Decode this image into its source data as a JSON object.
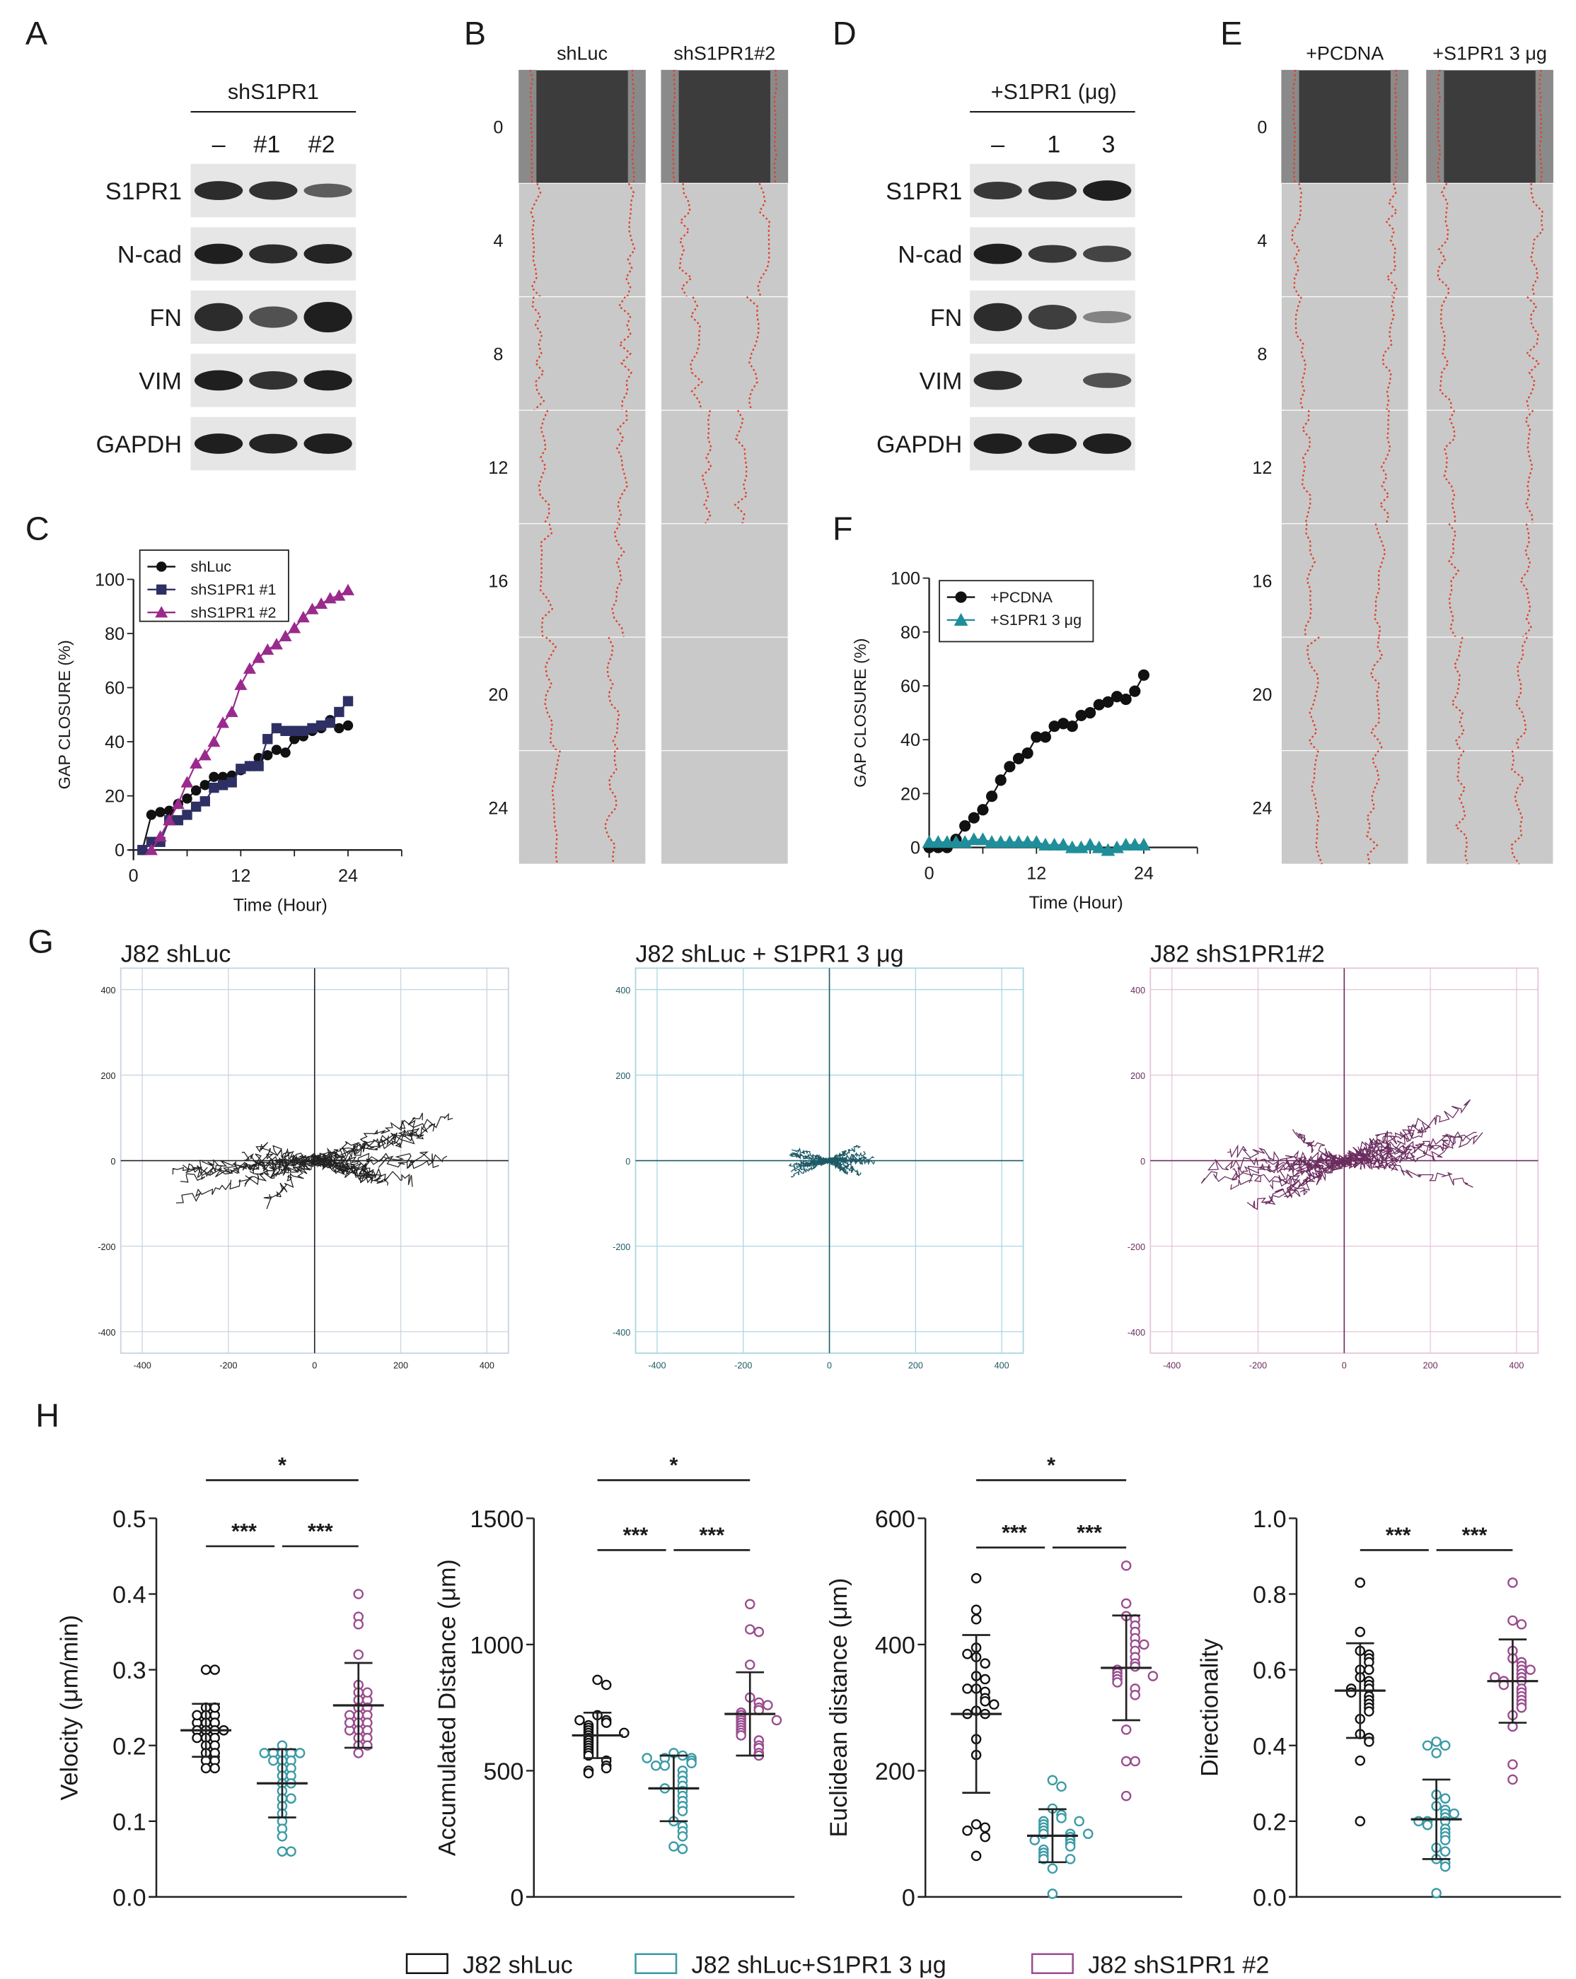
{
  "panels": {
    "A": "A",
    "B": "B",
    "C": "C",
    "D": "D",
    "E": "E",
    "F": "F",
    "G": "G",
    "H": "H"
  },
  "blot_A": {
    "header": "shS1PR1",
    "lanes": [
      "–",
      "#1",
      "#2"
    ],
    "rows": [
      {
        "label": "S1PR1",
        "intensity": [
          0.9,
          0.85,
          0.5
        ]
      },
      {
        "label": "N-cad",
        "intensity": [
          1.0,
          0.9,
          0.95
        ]
      },
      {
        "label": "FN",
        "intensity": [
          0.9,
          0.6,
          1.0
        ]
      },
      {
        "label": "VIM",
        "intensity": [
          1.0,
          0.85,
          1.0
        ]
      },
      {
        "label": "GAPDH",
        "intensity": [
          1.0,
          0.95,
          1.0
        ]
      }
    ]
  },
  "blot_D": {
    "header": "+S1PR1 (μg)",
    "lanes": [
      "–",
      "1",
      "3"
    ],
    "rows": [
      {
        "label": "S1PR1",
        "intensity": [
          0.8,
          0.85,
          1.0
        ]
      },
      {
        "label": "N-cad",
        "intensity": [
          1.0,
          0.8,
          0.7
        ]
      },
      {
        "label": "FN",
        "intensity": [
          0.9,
          0.75,
          0.2
        ]
      },
      {
        "label": "VIM",
        "intensity": [
          0.9,
          0.0,
          0.6
        ]
      },
      {
        "label": "GAPDH",
        "intensity": [
          1.0,
          1.0,
          1.0
        ]
      }
    ]
  },
  "wound_B": {
    "columns": [
      "shLuc",
      "shS1PR1#2"
    ],
    "times": [
      "0",
      "4",
      "8",
      "12",
      "16",
      "20",
      "24"
    ]
  },
  "wound_E": {
    "columns": [
      "+PCDNA",
      "+S1PR1 3 μg"
    ],
    "times": [
      "0",
      "4",
      "8",
      "12",
      "16",
      "20",
      "24"
    ]
  },
  "colors": {
    "black": "#111111",
    "navy": "#2e3064",
    "magenta": "#9a2a8c",
    "teal": "#1f8e9a",
    "teal_dark": "#1d5a66",
    "purple_dark": "#6a2c5e",
    "h_teal": "#3a9aa6",
    "h_magenta": "#9a4d8f",
    "red_line": "#e0402a"
  },
  "chart_data": [
    {
      "id": "C",
      "type": "line",
      "xlabel": "Time (Hour)",
      "ylabel": "GAP CLOSURE (%)",
      "xlim": [
        0,
        30
      ],
      "ylim": [
        0,
        100
      ],
      "xticks": [
        "0",
        "12",
        "24"
      ],
      "yticks": [
        "0",
        "20",
        "40",
        "60",
        "80",
        "100"
      ],
      "legend": "top-left",
      "series": [
        {
          "name": "shLuc",
          "marker": "circle",
          "x": [
            1,
            2,
            3,
            4,
            5,
            6,
            7,
            8,
            9,
            10,
            11,
            12,
            13,
            14,
            15,
            16,
            17,
            18,
            19,
            20,
            21,
            22,
            23,
            24
          ],
          "values": [
            0,
            13,
            14,
            14.5,
            17,
            19,
            22,
            24,
            27,
            27,
            27.5,
            29.5,
            31,
            34,
            35,
            37,
            36,
            41,
            42,
            44,
            45,
            48,
            45,
            46
          ]
        },
        {
          "name": "shS1PR1 #1",
          "marker": "square",
          "x": [
            1,
            2,
            3,
            4,
            5,
            6,
            7,
            8,
            9,
            10,
            11,
            12,
            13,
            14,
            15,
            16,
            17,
            18,
            19,
            20,
            21,
            22,
            23,
            24
          ],
          "values": [
            0,
            3,
            3,
            11,
            11,
            13,
            16,
            18,
            23,
            24,
            25,
            30,
            31,
            31,
            41,
            45,
            44,
            44,
            44,
            45,
            46,
            47,
            51,
            55
          ]
        },
        {
          "name": "shS1PR1 #2",
          "marker": "triangle",
          "x": [
            2,
            3,
            4,
            5,
            6,
            7,
            8,
            9,
            10,
            11,
            12,
            13,
            14,
            15,
            16,
            17,
            18,
            19,
            20,
            21,
            22,
            23,
            24
          ],
          "values": [
            0,
            5,
            11,
            17,
            25,
            32,
            35,
            40,
            47,
            51,
            61,
            67,
            71,
            74,
            76,
            79,
            82,
            86,
            89,
            91,
            93,
            94,
            96
          ]
        }
      ]
    },
    {
      "id": "F",
      "type": "line",
      "xlabel": "Time (Hour)",
      "ylabel": "GAP CLOSURE (%)",
      "xlim": [
        0,
        30
      ],
      "ylim": [
        0,
        100
      ],
      "xticks": [
        "0",
        "12",
        "24"
      ],
      "yticks": [
        "0",
        "20",
        "40",
        "60",
        "80",
        "100"
      ],
      "legend": "top-left",
      "series": [
        {
          "name": "+PCDNA",
          "marker": "circle",
          "x": [
            0,
            1,
            2,
            3,
            4,
            5,
            6,
            7,
            8,
            9,
            10,
            11,
            12,
            13,
            14,
            15,
            16,
            17,
            18,
            19,
            20,
            21,
            22,
            23,
            24
          ],
          "values": [
            0,
            0,
            0,
            3,
            8,
            11,
            14,
            19,
            25,
            30,
            33,
            35,
            41,
            41,
            45,
            46,
            45,
            49,
            50,
            53,
            54,
            56,
            55,
            58,
            64
          ]
        },
        {
          "name": "+S1PR1 3 μg",
          "marker": "triangle",
          "x": [
            0,
            1,
            2,
            3,
            4,
            5,
            6,
            7,
            8,
            9,
            10,
            11,
            12,
            13,
            14,
            15,
            16,
            17,
            18,
            19,
            20,
            21,
            22,
            23,
            24
          ],
          "values": [
            2,
            2,
            2,
            2,
            2,
            3,
            3,
            2,
            2,
            2,
            2,
            2,
            2,
            1,
            1,
            1,
            0,
            0,
            1,
            0,
            -1,
            0,
            1,
            1,
            1
          ]
        }
      ]
    },
    {
      "id": "G",
      "type": "scatter",
      "ticks": [
        "-400",
        "-200",
        "0",
        "200",
        "400"
      ],
      "range": [
        -450,
        450
      ],
      "plots": [
        {
          "title": "J82 shLuc",
          "spread_x": 330,
          "spread_y": 110
        },
        {
          "title": "J82 shLuc + S1PR1 3 μg",
          "spread_x": 110,
          "spread_y": 45
        },
        {
          "title": "J82 shS1PR1#2",
          "spread_x": 330,
          "spread_y": 120
        }
      ]
    },
    {
      "id": "H",
      "type": "scatter",
      "groups": [
        "J82 shLuc",
        "J82 shLuc+S1PR1 3 μg",
        "J82 shS1PR1 #2"
      ],
      "plots": [
        {
          "ylabel": "Velocity (μm/min)",
          "ylim": [
            0,
            0.5
          ],
          "yticks": [
            "0.0",
            "0.1",
            "0.2",
            "0.3",
            "0.4",
            "0.5"
          ],
          "sig": [
            {
              "pair": [
                0,
                2
              ],
              "label": "*"
            },
            {
              "pair": [
                0,
                1
              ],
              "label": "***"
            },
            {
              "pair": [
                1,
                2
              ],
              "label": "***"
            }
          ],
          "mean_sd": [
            [
              0.22,
              0.035
            ],
            [
              0.15,
              0.045
            ],
            [
              0.253,
              0.056
            ]
          ],
          "values": [
            [
              0.3,
              0.3,
              0.25,
              0.24,
              0.24,
              0.23,
              0.23,
              0.23,
              0.22,
              0.22,
              0.22,
              0.22,
              0.21,
              0.21,
              0.21,
              0.2,
              0.2,
              0.19,
              0.19,
              0.18,
              0.18,
              0.17,
              0.17,
              0.25,
              0.24
            ],
            [
              0.2,
              0.19,
              0.19,
              0.19,
              0.19,
              0.18,
              0.18,
              0.17,
              0.17,
              0.16,
              0.16,
              0.15,
              0.15,
              0.14,
              0.13,
              0.13,
              0.12,
              0.11,
              0.1,
              0.09,
              0.08,
              0.06,
              0.06,
              0.19,
              0.18
            ],
            [
              0.4,
              0.37,
              0.36,
              0.32,
              0.28,
              0.27,
              0.26,
              0.26,
              0.25,
              0.25,
              0.24,
              0.24,
              0.24,
              0.23,
              0.23,
              0.22,
              0.22,
              0.22,
              0.21,
              0.21,
              0.2,
              0.2,
              0.19,
              0.27,
              0.23
            ]
          ]
        },
        {
          "ylabel": "Accumulated Distance (μm)",
          "ylim": [
            0,
            1500
          ],
          "yticks": [
            "0",
            "500",
            "1000",
            "1500"
          ],
          "sig": [
            {
              "pair": [
                0,
                2
              ],
              "label": "*"
            },
            {
              "pair": [
                0,
                1
              ],
              "label": "***"
            },
            {
              "pair": [
                1,
                2
              ],
              "label": "***"
            }
          ],
          "mean_sd": [
            [
              640,
              90
            ],
            [
              430,
              130
            ],
            [
              725,
              165
            ]
          ],
          "values": [
            [
              860,
              840,
              720,
              700,
              690,
              680,
              670,
              660,
              650,
              640,
              630,
              620,
              610,
              600,
              590,
              580,
              570,
              560,
              540,
              520,
              510,
              500,
              490,
              700,
              650
            ],
            [
              570,
              560,
              550,
              550,
              540,
              530,
              520,
              500,
              480,
              460,
              440,
              420,
              400,
              380,
              360,
              340,
              300,
              280,
              260,
              240,
              200,
              190,
              550,
              520,
              430
            ],
            [
              1160,
              1060,
              1050,
              920,
              790,
              770,
              750,
              740,
              730,
              720,
              710,
              700,
              690,
              680,
              670,
              660,
              650,
              640,
              620,
              600,
              590,
              570,
              560,
              760,
              700
            ]
          ]
        },
        {
          "ylabel": "Euclidean distance (μm)",
          "ylim": [
            0,
            600
          ],
          "yticks": [
            "0",
            "200",
            "400",
            "600"
          ],
          "sig": [
            {
              "pair": [
                0,
                2
              ],
              "label": "*"
            },
            {
              "pair": [
                0,
                1
              ],
              "label": "***"
            },
            {
              "pair": [
                1,
                2
              ],
              "label": "***"
            }
          ],
          "mean_sd": [
            [
              290,
              125
            ],
            [
              97,
              42
            ],
            [
              363,
              83
            ]
          ],
          "values": [
            [
              505,
              455,
              440,
              395,
              380,
              370,
              350,
              345,
              330,
              325,
              315,
              310,
              295,
              290,
              290,
              250,
              225,
              115,
              110,
              105,
              95,
              65,
              330,
              385,
              305
            ],
            [
              185,
              175,
              140,
              130,
              125,
              120,
              115,
              110,
              105,
              100,
              100,
              95,
              90,
              90,
              85,
              80,
              75,
              70,
              65,
              60,
              60,
              45,
              5,
              120,
              100
            ],
            [
              525,
              465,
              445,
              440,
              430,
              420,
              410,
              400,
              390,
              380,
              370,
              365,
              360,
              355,
              350,
              345,
              340,
              330,
              320,
              265,
              215,
              215,
              160,
              400,
              350
            ]
          ]
        },
        {
          "ylabel": "Directionality",
          "ylim": [
            0,
            1.0
          ],
          "yticks": [
            "0.0",
            "0.2",
            "0.4",
            "0.6",
            "0.8",
            "1.0"
          ],
          "sig": [
            {
              "pair": [
                0,
                1
              ],
              "label": "***"
            },
            {
              "pair": [
                1,
                2
              ],
              "label": "***"
            }
          ],
          "mean_sd": [
            [
              0.545,
              0.125
            ],
            [
              0.205,
              0.105
            ],
            [
              0.57,
              0.11
            ]
          ],
          "values": [
            [
              0.83,
              0.7,
              0.65,
              0.64,
              0.63,
              0.62,
              0.6,
              0.58,
              0.57,
              0.56,
              0.55,
              0.55,
              0.54,
              0.53,
              0.52,
              0.51,
              0.5,
              0.49,
              0.47,
              0.43,
              0.42,
              0.41,
              0.36,
              0.2,
              0.6
            ],
            [
              0.41,
              0.4,
              0.4,
              0.38,
              0.27,
              0.26,
              0.24,
              0.23,
              0.22,
              0.21,
              0.2,
              0.2,
              0.19,
              0.18,
              0.17,
              0.16,
              0.15,
              0.13,
              0.12,
              0.1,
              0.09,
              0.08,
              0.01,
              0.22,
              0.2
            ],
            [
              0.83,
              0.73,
              0.72,
              0.65,
              0.63,
              0.62,
              0.61,
              0.6,
              0.59,
              0.58,
              0.57,
              0.57,
              0.56,
              0.55,
              0.54,
              0.53,
              0.52,
              0.51,
              0.5,
              0.48,
              0.45,
              0.35,
              0.31,
              0.6,
              0.58
            ]
          ]
        }
      ]
    }
  ]
}
